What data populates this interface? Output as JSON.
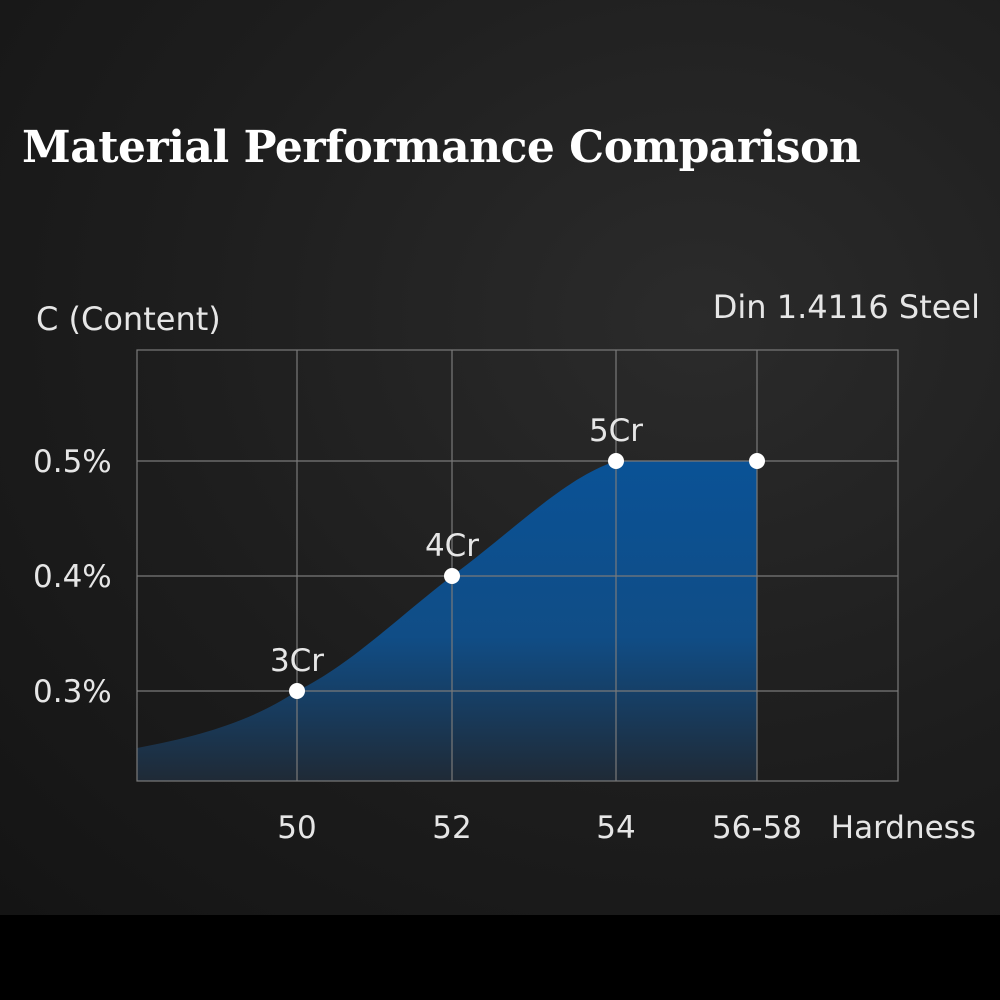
{
  "chart_data": {
    "type": "area",
    "title": "Material Performance Comparison",
    "ylabel": "C (Content)",
    "xlabel": "Hardness",
    "annotation": "Din 1.4116 Steel",
    "categories": [
      "50",
      "52",
      "54",
      "56-58"
    ],
    "x_ticks": [
      "50",
      "52",
      "54",
      "56-58"
    ],
    "y_ticks": [
      {
        "label": "0.5%",
        "value": 0.5
      },
      {
        "label": "0.4%",
        "value": 0.4
      },
      {
        "label": "0.3%",
        "value": 0.3
      }
    ],
    "points": [
      {
        "x": 50,
        "y": 0.3,
        "label": "3Cr"
      },
      {
        "x": 52,
        "y": 0.4,
        "label": "4Cr"
      },
      {
        "x": 54,
        "y": 0.5,
        "label": "5Cr"
      },
      {
        "x": 56.5,
        "y": 0.5,
        "label": ""
      }
    ],
    "xlim": [
      48,
      58
    ],
    "ylim": [
      0.22,
      0.6
    ],
    "grid": true,
    "colors": {
      "area_top": "#0a5296",
      "area_bottom": "#1f2a36",
      "grid": "#7a7a7a",
      "points": "#ffffff",
      "text": "#e6e6e6"
    }
  }
}
